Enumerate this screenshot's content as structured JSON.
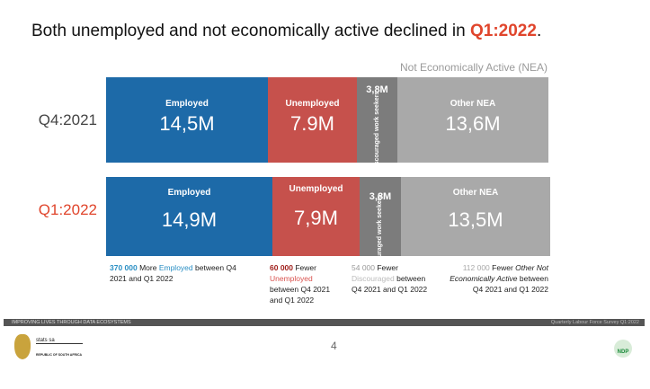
{
  "title": {
    "prefix": "Both unemployed and not economically active declined in ",
    "highlight": "Q1:2022",
    "suffix": "."
  },
  "nea_label": "Not Economically Active (NEA)",
  "rows": [
    {
      "label": "Q4:2021",
      "employed": {
        "title": "Employed",
        "value": "14,5M"
      },
      "unemployed": {
        "title": "Unemployed",
        "value": "7.9M"
      },
      "discouraged": {
        "value": "3,8M",
        "title": "Discouraged work seekers"
      },
      "other": {
        "title": "Other NEA",
        "value": "13,6M"
      }
    },
    {
      "label": "Q1:2022",
      "employed": {
        "title": "Employed",
        "value": "14,9M"
      },
      "unemployed": {
        "title": "Unemployed",
        "value": "7,9M"
      },
      "discouraged": {
        "value": "3,8M",
        "title": "Discouraged work seekers"
      },
      "other": {
        "title": "Other NEA",
        "value": "13,5M"
      }
    }
  ],
  "notes": {
    "employed": {
      "num": "370 000",
      "a": " More ",
      "kw": "Employed",
      "b": " between Q4 2021 and Q1 2022"
    },
    "unemployed": {
      "num": "60 000",
      "a": " Fewer ",
      "kw": "Unemployed",
      "b": " between Q4 2021 and Q1 2022"
    },
    "discouraged": {
      "num": "54 000",
      "a": " Fewer ",
      "kw": "Discouraged",
      "b": " between Q4 2021 and Q1 2022"
    },
    "other": {
      "num": "112 000",
      "a": " Fewer ",
      "kw": "Other Not Economically Active",
      "b": " between Q4 2021 and Q1 2022"
    }
  },
  "footer": {
    "left": "IMPROVING LIVES THROUGH DATA ECOSYSTEMS",
    "right": "Quarterly Labour Force Survey Q1:2022",
    "page": "4",
    "logo_left": "stats sa",
    "logo_left_sub": "REPUBLIC OF SOUTH AFRICA",
    "logo_right": "NDP"
  }
}
